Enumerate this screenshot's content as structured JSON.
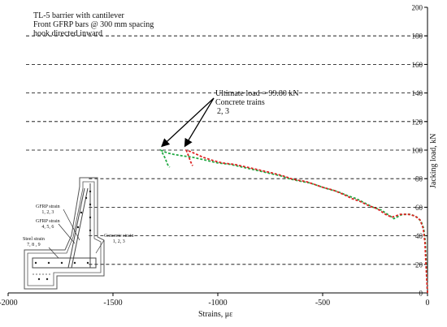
{
  "annotations": {
    "title_lines": [
      "TL-5 barrier with cantilever",
      "Front GFRP bars @ 300 mm spacing",
      "hook directed inward"
    ],
    "ultimate_lines": [
      "Ultimate load = 99.80 kN",
      "Concrete trains",
      "2, 3"
    ],
    "gauges": {
      "gfrp_123": [
        "GFRP strain",
        "1, 2, 3"
      ],
      "gfrp_456": [
        "GFRP strain",
        "4, 5, 6"
      ],
      "steel_789": [
        "Steel strain",
        "7, 8 , 9"
      ],
      "concrete_123": [
        "Concrete strain",
        "1, 2, 3"
      ]
    }
  },
  "colors": {
    "series_green": "#22aa44",
    "series_red": "#dd2222",
    "grid": "#000000"
  },
  "chart_data": {
    "type": "line",
    "xlabel": "Strains, με",
    "ylabel": "Jacking load, kN",
    "xlim": [
      -2000,
      0
    ],
    "ylim": [
      0,
      200
    ],
    "xticks": [
      -2000,
      -1500,
      -1000,
      -500,
      0
    ],
    "yticks": [
      0,
      20,
      40,
      60,
      80,
      100,
      120,
      140,
      160,
      180,
      200
    ],
    "grid": "horizontal dashed",
    "series": [
      {
        "color": "green",
        "points": [
          [
            0,
            0
          ],
          [
            -3,
            10
          ],
          [
            -6,
            20
          ],
          [
            -10,
            35
          ],
          [
            -18,
            45
          ],
          [
            -30,
            50
          ],
          [
            -50,
            53
          ],
          [
            -80,
            55
          ],
          [
            -120,
            55
          ],
          [
            -160,
            52
          ],
          [
            -190,
            55
          ],
          [
            -220,
            58
          ],
          [
            -260,
            60
          ],
          [
            -300,
            63
          ],
          [
            -340,
            66
          ],
          [
            -380,
            68
          ],
          [
            -430,
            71
          ],
          [
            -480,
            73
          ],
          [
            -520,
            75
          ],
          [
            -560,
            77
          ],
          [
            -600,
            78
          ],
          [
            -630,
            79
          ],
          [
            -660,
            80
          ],
          [
            -700,
            82
          ],
          [
            -760,
            84
          ],
          [
            -820,
            86
          ],
          [
            -880,
            88
          ],
          [
            -940,
            90
          ],
          [
            -1000,
            91
          ],
          [
            -1060,
            93
          ],
          [
            -1120,
            95
          ],
          [
            -1170,
            96
          ],
          [
            -1210,
            97
          ],
          [
            -1240,
            98
          ],
          [
            -1270,
            99.8
          ],
          [
            -1250,
            94
          ],
          [
            -1240,
            90
          ],
          [
            -1230,
            88
          ]
        ]
      },
      {
        "color": "red",
        "points": [
          [
            0,
            0
          ],
          [
            -4,
            10
          ],
          [
            -8,
            22
          ],
          [
            -12,
            35
          ],
          [
            -20,
            45
          ],
          [
            -35,
            51
          ],
          [
            -60,
            54
          ],
          [
            -90,
            55
          ],
          [
            -130,
            55
          ],
          [
            -170,
            53
          ],
          [
            -200,
            55
          ],
          [
            -240,
            59
          ],
          [
            -280,
            61
          ],
          [
            -320,
            64
          ],
          [
            -360,
            66
          ],
          [
            -400,
            69
          ],
          [
            -450,
            72
          ],
          [
            -500,
            74
          ],
          [
            -540,
            76
          ],
          [
            -580,
            78
          ],
          [
            -620,
            79
          ],
          [
            -650,
            80
          ],
          [
            -690,
            82
          ],
          [
            -740,
            84
          ],
          [
            -800,
            86
          ],
          [
            -860,
            88
          ],
          [
            -920,
            90
          ],
          [
            -980,
            91
          ],
          [
            -1030,
            93
          ],
          [
            -1070,
            95
          ],
          [
            -1100,
            97
          ],
          [
            -1130,
            99
          ],
          [
            -1150,
            99.8
          ],
          [
            -1140,
            96
          ],
          [
            -1130,
            92
          ],
          [
            -1120,
            89
          ]
        ]
      }
    ],
    "annotation_points": [
      [
        -1275,
        99.8
      ],
      [
        -1165,
        99.8
      ]
    ]
  }
}
